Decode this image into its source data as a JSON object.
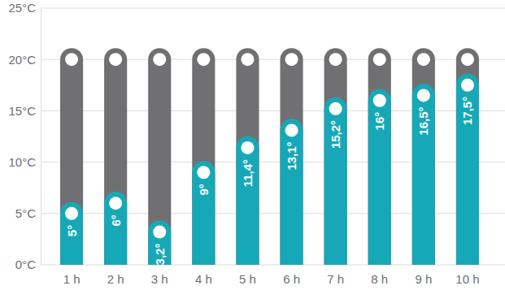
{
  "chart_data": {
    "type": "bar",
    "categories": [
      "1 h",
      "2 h",
      "3 h",
      "4 h",
      "5 h",
      "6 h",
      "7 h",
      "8 h",
      "9 h",
      "10 h"
    ],
    "series": [
      {
        "color": "#707073",
        "values": [
          20,
          20,
          20,
          20,
          20,
          20,
          20,
          20,
          20,
          20
        ]
      },
      {
        "color": "#17a8b8",
        "values": [
          5,
          6,
          3.2,
          9,
          11.4,
          13.1,
          15.2,
          16,
          16.5,
          17.5
        ],
        "value_labels": [
          "5°",
          "6°",
          "3,2°",
          "9°",
          "11,4°",
          "13,1°",
          "15,2°",
          "16°",
          "16,5°",
          "17,5°"
        ]
      }
    ],
    "ylim": [
      0,
      25
    ],
    "yticks": [
      {
        "value": 0,
        "label": "0°C"
      },
      {
        "value": 5,
        "label": "5°C"
      },
      {
        "value": 10,
        "label": "10°C"
      },
      {
        "value": 15,
        "label": "15°C"
      },
      {
        "value": 20,
        "label": "20°C"
      },
      {
        "value": 25,
        "label": "25°C"
      }
    ],
    "grid": true,
    "data_labels": true
  }
}
